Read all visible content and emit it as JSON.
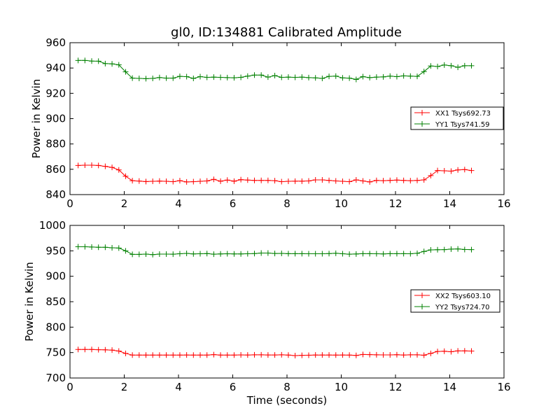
{
  "chart_data": [
    {
      "type": "line",
      "title": "gl0, ID:134881 Calibrated Amplitude",
      "xlabel": "",
      "ylabel": "Power in Kelvin",
      "xlim": [
        0,
        16
      ],
      "ylim": [
        840,
        960
      ],
      "xticks": [
        "0",
        "2",
        "4",
        "6",
        "8",
        "10",
        "12",
        "14",
        "16"
      ],
      "yticks": [
        "840",
        "860",
        "880",
        "900",
        "920",
        "940",
        "960"
      ],
      "legend_position": "right",
      "grid": false,
      "x": [
        0.3,
        0.55,
        0.8,
        1.05,
        1.3,
        1.55,
        1.8,
        2.05,
        2.3,
        2.55,
        2.8,
        3.05,
        3.3,
        3.55,
        3.8,
        4.05,
        4.3,
        4.55,
        4.8,
        5.05,
        5.3,
        5.55,
        5.8,
        6.05,
        6.3,
        6.55,
        6.8,
        7.05,
        7.3,
        7.55,
        7.8,
        8.05,
        8.3,
        8.55,
        8.8,
        9.05,
        9.3,
        9.55,
        9.8,
        10.05,
        10.3,
        10.55,
        10.8,
        11.05,
        11.3,
        11.55,
        11.8,
        12.05,
        12.3,
        12.55,
        12.8,
        13.05,
        13.3,
        13.55,
        13.8,
        14.05,
        14.3,
        14.55,
        14.8
      ],
      "series": [
        {
          "name": "XX1 Tsys692.73",
          "color": "#ff0000",
          "values": [
            863,
            863.2,
            863.2,
            863,
            862.3,
            861.5,
            859.5,
            854.5,
            851,
            850.7,
            850.3,
            850.5,
            850.7,
            850.5,
            850.2,
            851,
            850,
            850.2,
            850.5,
            850.8,
            852,
            850.6,
            851.5,
            850.6,
            851.8,
            851.5,
            851.2,
            851.2,
            851.2,
            851,
            850.2,
            850.5,
            850.6,
            850.6,
            850.8,
            851.6,
            851.6,
            851.2,
            850.8,
            850.5,
            850.2,
            851.6,
            850.8,
            850,
            851.2,
            851,
            851.2,
            851.5,
            851.2,
            851,
            851.2,
            851.6,
            855,
            859,
            858.8,
            858.5,
            859.5,
            859.8,
            859
          ]
        },
        {
          "name": "YY1 Tsys741.59",
          "color": "#008000",
          "values": [
            946,
            946,
            945.5,
            945.4,
            943.5,
            943.3,
            942.5,
            937,
            932,
            931.8,
            931.6,
            931.8,
            932.5,
            932,
            932,
            933.4,
            933.2,
            931.8,
            933.2,
            932.6,
            932.8,
            932.6,
            932.4,
            932.3,
            932.6,
            933.6,
            934.4,
            934.4,
            932.8,
            934,
            932.6,
            932.8,
            932.6,
            932.8,
            932.4,
            932.2,
            931.8,
            933.4,
            933.6,
            932.2,
            932,
            931,
            933.2,
            932.4,
            932.8,
            933,
            933.6,
            933.2,
            933.8,
            933.6,
            933.4,
            937.2,
            941.6,
            941.2,
            942.4,
            941.8,
            940.6,
            941.8,
            941.8
          ]
        }
      ]
    },
    {
      "type": "line",
      "title": "",
      "xlabel": "Time (seconds)",
      "ylabel": "Power in Kelvin",
      "xlim": [
        0,
        16
      ],
      "ylim": [
        700,
        1000
      ],
      "xticks": [
        "0",
        "2",
        "4",
        "6",
        "8",
        "10",
        "12",
        "14",
        "16"
      ],
      "yticks": [
        "700",
        "750",
        "800",
        "850",
        "900",
        "950",
        "1000"
      ],
      "legend_position": "right",
      "grid": false,
      "x": [
        0.3,
        0.55,
        0.8,
        1.05,
        1.3,
        1.55,
        1.8,
        2.05,
        2.3,
        2.55,
        2.8,
        3.05,
        3.3,
        3.55,
        3.8,
        4.05,
        4.3,
        4.55,
        4.8,
        5.05,
        5.3,
        5.55,
        5.8,
        6.05,
        6.3,
        6.55,
        6.8,
        7.05,
        7.3,
        7.55,
        7.8,
        8.05,
        8.3,
        8.55,
        8.8,
        9.05,
        9.3,
        9.55,
        9.8,
        10.05,
        10.3,
        10.55,
        10.8,
        11.05,
        11.3,
        11.55,
        11.8,
        12.05,
        12.3,
        12.55,
        12.8,
        13.05,
        13.3,
        13.55,
        13.8,
        14.05,
        14.3,
        14.55,
        14.8
      ],
      "series": [
        {
          "name": "XX2 Tsys603.10",
          "color": "#ff0000",
          "values": [
            756,
            756,
            756,
            755.6,
            755.4,
            754.8,
            753,
            748.4,
            745,
            745,
            745,
            745,
            745,
            745,
            745,
            745,
            745.2,
            745,
            745,
            745,
            746,
            745,
            745,
            745.1,
            745.4,
            745.2,
            745.5,
            745.5,
            745.3,
            745.3,
            745.5,
            745,
            744,
            744.6,
            744.8,
            745.2,
            745.2,
            745.2,
            745,
            745.2,
            745,
            744.4,
            746.2,
            746,
            745.6,
            745.4,
            745.4,
            745.8,
            745.2,
            745.5,
            745.5,
            744.8,
            748.4,
            752.2,
            752.6,
            751.6,
            753.4,
            753.4,
            753
          ]
        },
        {
          "name": "YY2 Tsys724.70",
          "color": "#008000",
          "values": [
            958,
            958,
            957.5,
            957,
            957,
            956,
            955.5,
            950,
            943,
            943,
            943.6,
            942.6,
            943.6,
            943.6,
            943.4,
            944.2,
            945,
            944,
            944.2,
            944.6,
            943.4,
            944,
            944.2,
            944,
            944,
            944.2,
            944.6,
            945.6,
            945.6,
            944.8,
            945,
            944.4,
            944.4,
            944.4,
            944.2,
            944.2,
            944.2,
            944.6,
            945.2,
            944.2,
            943.4,
            943.8,
            944.4,
            944.4,
            944.2,
            944,
            944.4,
            944.4,
            944.4,
            944.2,
            945.2,
            948.8,
            951.8,
            952.2,
            952.4,
            953.4,
            953.8,
            952.6,
            952.4
          ]
        }
      ]
    }
  ]
}
